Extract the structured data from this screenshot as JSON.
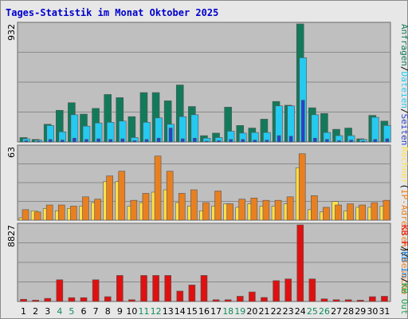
{
  "title": "Tages-Statistik im Monat Oktober 2025",
  "colors": {
    "anfragen": "#127a5a",
    "dateien": "#26c9f0",
    "seiten": "#2b3fc8",
    "besuche": "#e98020",
    "rechner": "#ffe04a",
    "kb_in": "#1b7ed8",
    "kb_out": "#1d9e4a",
    "kb_f": "#e01010",
    "weekend_day": "#148a5a",
    "plot_bg": "#bfbfbf",
    "grid": "#8a8a8a"
  },
  "chart_data": [
    {
      "type": "bar",
      "panel": "top",
      "ymax_label": "932",
      "ymax": 932,
      "categories": [
        "1",
        "2",
        "3",
        "4",
        "5",
        "6",
        "7",
        "8",
        "9",
        "10",
        "11",
        "12",
        "13",
        "14",
        "15",
        "16",
        "17",
        "18",
        "19",
        "20",
        "21",
        "22",
        "23",
        "24",
        "25",
        "26",
        "27",
        "28",
        "29",
        "30",
        "31"
      ],
      "legend": [
        "Anfragen",
        "/",
        "Dateien",
        "/",
        "Seiten"
      ],
      "series": [
        {
          "name": "Anfragen",
          "values": [
            35,
            20,
            140,
            250,
            310,
            220,
            265,
            375,
            350,
            200,
            390,
            390,
            325,
            450,
            280,
            50,
            70,
            275,
            130,
            110,
            180,
            320,
            290,
            932,
            270,
            225,
            100,
            110,
            25,
            210,
            165
          ]
        },
        {
          "name": "Dateien",
          "values": [
            25,
            15,
            130,
            80,
            215,
            125,
            150,
            155,
            165,
            35,
            155,
            190,
            140,
            200,
            215,
            30,
            35,
            85,
            70,
            75,
            75,
            285,
            285,
            665,
            215,
            75,
            50,
            50,
            20,
            195,
            130
          ]
        },
        {
          "name": "Seiten",
          "values": [
            10,
            5,
            20,
            15,
            30,
            20,
            25,
            20,
            25,
            10,
            20,
            30,
            110,
            25,
            30,
            5,
            10,
            20,
            20,
            15,
            15,
            50,
            45,
            330,
            30,
            20,
            10,
            15,
            5,
            20,
            25
          ]
        }
      ]
    },
    {
      "type": "bar",
      "panel": "middle",
      "ymax_label": "63",
      "ymax": 63,
      "legend": [
        "Rechner",
        "(",
        "IP-Adressen",
        ")",
        "/",
        "Besuche"
      ],
      "series": [
        {
          "name": "Rechner (IP-Adressen)",
          "values": [
            2,
            8,
            10,
            8,
            10,
            12,
            15,
            33,
            33,
            12,
            15,
            24,
            26,
            15,
            12,
            8,
            12,
            14,
            11,
            14,
            12,
            12,
            14,
            45,
            9,
            7,
            16,
            8,
            11,
            11,
            12
          ]
        },
        {
          "name": "Besuche",
          "values": [
            9,
            7,
            13,
            13,
            12,
            20,
            18,
            38,
            42,
            17,
            23,
            55,
            42,
            23,
            26,
            15,
            25,
            14,
            18,
            19,
            17,
            17,
            20,
            57,
            21,
            11,
            13,
            14,
            13,
            15,
            17
          ]
        }
      ]
    },
    {
      "type": "bar",
      "panel": "bottom",
      "ymax_label": "8827",
      "ymax": 8827,
      "legend": [
        "KB F",
        "/",
        "KB In",
        "/",
        "KB Out"
      ],
      "series": [
        {
          "name": "KB F",
          "values": [
            250,
            150,
            360,
            2500,
            440,
            440,
            2500,
            550,
            3000,
            200,
            3000,
            3000,
            3000,
            1200,
            1900,
            3000,
            200,
            200,
            600,
            1100,
            460,
            2400,
            2600,
            8827,
            2600,
            300,
            200,
            200,
            150,
            550,
            600
          ]
        }
      ]
    }
  ],
  "weekend_days": [
    "4",
    "5",
    "11",
    "12",
    "18",
    "19",
    "25",
    "26"
  ]
}
